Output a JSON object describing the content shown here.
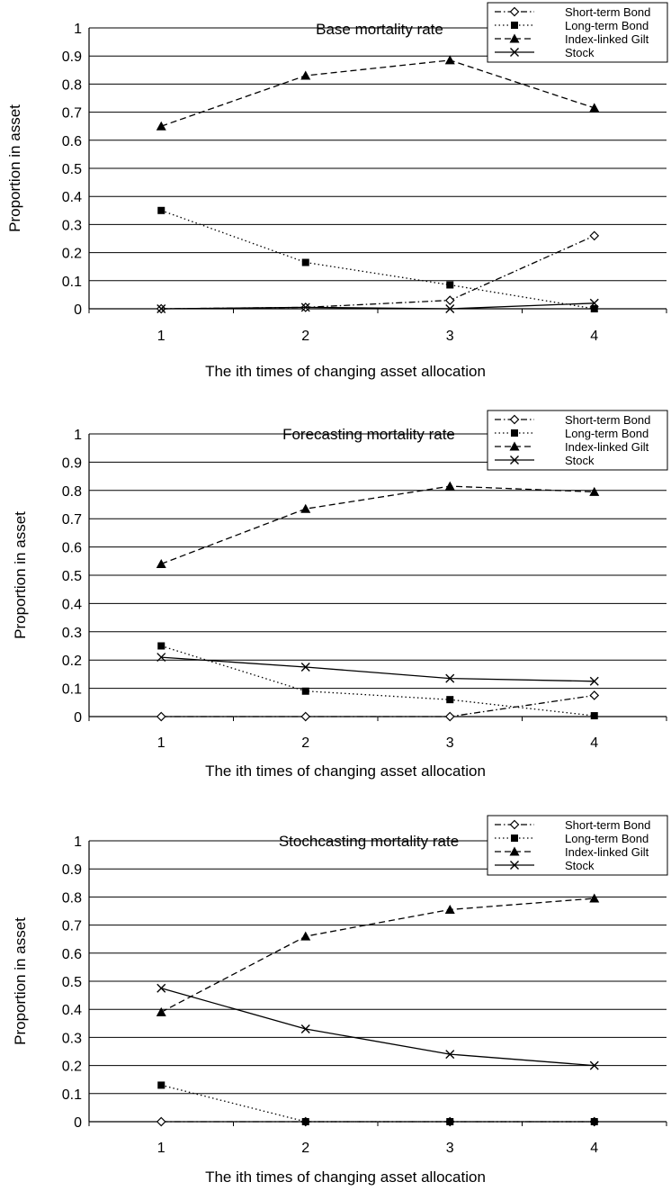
{
  "chart_data": [
    {
      "type": "line",
      "title": "Base mortality rate",
      "xlabel": "The ith times of changing asset allocation",
      "ylabel": "Proportion in asset",
      "categories": [
        "1",
        "2",
        "3",
        "4"
      ],
      "ylim": [
        0,
        1
      ],
      "yticks": [
        "0",
        "0.1",
        "0.2",
        "0.3",
        "0.4",
        "0.5",
        "0.6",
        "0.7",
        "0.8",
        "0.9",
        "1"
      ],
      "grid": true,
      "legend_position": "top-right",
      "series": [
        {
          "name": "Short-term Bond",
          "marker": "diamond-open",
          "dash": "dash-dot",
          "values": [
            0.0,
            0.005,
            0.03,
            0.26
          ]
        },
        {
          "name": "Long-term Bond",
          "marker": "square",
          "dash": "dotted",
          "values": [
            0.35,
            0.165,
            0.085,
            0.0
          ]
        },
        {
          "name": "Index-linked Gilt",
          "marker": "triangle",
          "dash": "dashed",
          "values": [
            0.65,
            0.83,
            0.885,
            0.715
          ]
        },
        {
          "name": "Stock",
          "marker": "x",
          "dash": "solid",
          "values": [
            0.0,
            0.005,
            0.0,
            0.02
          ]
        }
      ]
    },
    {
      "type": "line",
      "title": "Forecasting mortality rate",
      "xlabel": "The ith times of changing asset allocation",
      "ylabel": "Proportion in asset",
      "categories": [
        "1",
        "2",
        "3",
        "4"
      ],
      "ylim": [
        0,
        1
      ],
      "yticks": [
        "0",
        "0.1",
        "0.2",
        "0.3",
        "0.4",
        "0.5",
        "0.6",
        "0.7",
        "0.8",
        "0.9",
        "1"
      ],
      "grid": true,
      "legend_position": "top-right",
      "series": [
        {
          "name": "Short-term Bond",
          "marker": "diamond-open",
          "dash": "dash-dot",
          "values": [
            0.0,
            0.0,
            0.0,
            0.075
          ]
        },
        {
          "name": "Long-term Bond",
          "marker": "square",
          "dash": "dotted",
          "values": [
            0.25,
            0.09,
            0.06,
            0.003
          ]
        },
        {
          "name": "Index-linked Gilt",
          "marker": "triangle",
          "dash": "dashed",
          "values": [
            0.54,
            0.735,
            0.815,
            0.795
          ]
        },
        {
          "name": "Stock",
          "marker": "x",
          "dash": "solid",
          "values": [
            0.21,
            0.175,
            0.135,
            0.125
          ]
        }
      ]
    },
    {
      "type": "line",
      "title": "Stochcasting mortality rate",
      "xlabel": "The ith times of changing asset allocation",
      "ylabel": "Proportion in asset",
      "categories": [
        "1",
        "2",
        "3",
        "4"
      ],
      "ylim": [
        0,
        1
      ],
      "yticks": [
        "0",
        "0.1",
        "0.2",
        "0.3",
        "0.4",
        "0.5",
        "0.6",
        "0.7",
        "0.8",
        "0.9",
        "1"
      ],
      "grid": true,
      "legend_position": "top-right",
      "series": [
        {
          "name": "Short-term Bond",
          "marker": "diamond-open",
          "dash": "dash-dot",
          "values": [
            0.0,
            0.0,
            0.0,
            0.0
          ]
        },
        {
          "name": "Long-term Bond",
          "marker": "square",
          "dash": "dotted",
          "values": [
            0.13,
            0.0,
            0.0,
            0.0
          ]
        },
        {
          "name": "Index-linked Gilt",
          "marker": "triangle",
          "dash": "dashed",
          "values": [
            0.39,
            0.66,
            0.755,
            0.795
          ]
        },
        {
          "name": "Stock",
          "marker": "x",
          "dash": "solid",
          "values": [
            0.475,
            0.33,
            0.24,
            0.2
          ]
        }
      ]
    }
  ]
}
